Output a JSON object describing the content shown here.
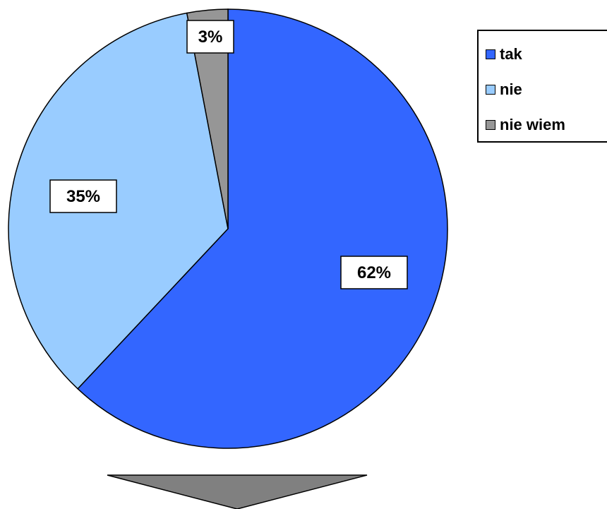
{
  "chart_data": {
    "type": "pie",
    "start_angle_deg": 0,
    "direction": "clockwise",
    "slices": [
      {
        "label": "tak",
        "value": 62,
        "display": "62%",
        "color": "#3366FF"
      },
      {
        "label": "nie",
        "value": 35,
        "display": "35%",
        "color": "#99CCFF"
      },
      {
        "label": "nie wiem",
        "value": 3,
        "display": "3%",
        "color": "#969696"
      }
    ],
    "legend": {
      "placement": "top-right"
    },
    "arrow_color": "#808080"
  }
}
